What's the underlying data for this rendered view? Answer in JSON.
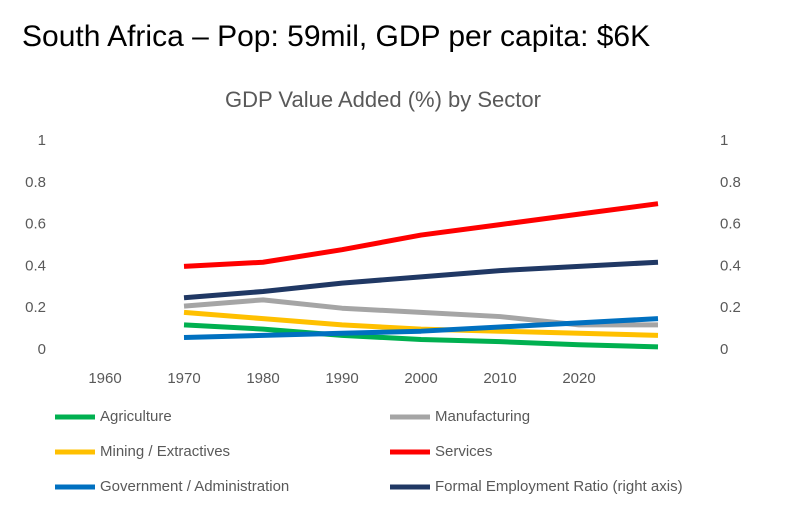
{
  "page_title": "South Africa – Pop: 59mil, GDP per capita:  $6K",
  "chart_data": {
    "type": "line",
    "title": "GDP Value Added (%) by Sector",
    "categories": [
      "1960",
      "1970",
      "1980",
      "1990",
      "2000",
      "2010",
      "2020",
      null
    ],
    "series": [
      {
        "name": "Agriculture",
        "color": "#00b050",
        "values": [
          null,
          0.12,
          0.1,
          0.07,
          0.05,
          0.04,
          0.025,
          0.015
        ]
      },
      {
        "name": "Manufacturing",
        "color": "#a5a5a5",
        "values": [
          null,
          0.21,
          0.24,
          0.2,
          0.18,
          0.16,
          0.12,
          0.12
        ]
      },
      {
        "name": "Mining / Extractives",
        "color": "#ffc000",
        "values": [
          null,
          0.18,
          0.15,
          0.12,
          0.1,
          0.09,
          0.08,
          0.07
        ]
      },
      {
        "name": "Services",
        "color": "#ff0000",
        "values": [
          null,
          0.4,
          0.42,
          0.48,
          0.55,
          0.6,
          0.65,
          0.7
        ]
      },
      {
        "name": "Government / Administration",
        "color": "#0070c0",
        "values": [
          null,
          0.06,
          0.07,
          0.08,
          0.09,
          0.11,
          0.13,
          0.15
        ]
      },
      {
        "name": "Formal Employment Ratio (right axis)",
        "color": "#203864",
        "axis": "y2",
        "values": [
          null,
          0.25,
          0.28,
          0.32,
          0.35,
          0.38,
          0.4,
          0.42
        ]
      }
    ],
    "ylim": [
      0,
      1
    ],
    "yticks": [
      0,
      0.2,
      0.4,
      0.6,
      0.8,
      1
    ],
    "y2lim": [
      0,
      1
    ],
    "y2ticks": [
      0,
      0.2,
      0.4,
      0.6,
      0.8,
      1
    ],
    "grid": false,
    "legend": "bottom"
  }
}
